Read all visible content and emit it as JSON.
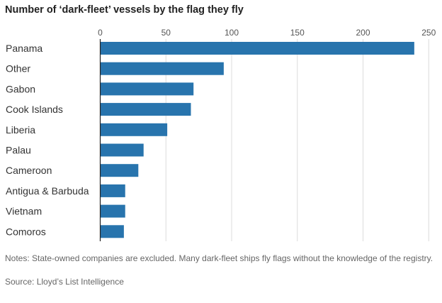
{
  "title": "Number of ‘dark-fleet’ vessels by the flag they fly",
  "notes": "Notes: State-owned companies are excluded. Many dark-fleet ships fly flags without the knowledge of the registry.",
  "source": "Source: Lloyd’s List Intelligence",
  "chart_data": {
    "type": "bar",
    "orientation": "horizontal",
    "title": "Number of ‘dark-fleet’ vessels by the flag they fly",
    "xlabel": "",
    "ylabel": "",
    "categories": [
      "Panama",
      "Other",
      "Gabon",
      "Cook Islands",
      "Liberia",
      "Palau",
      "Cameroon",
      "Antigua & Barbuda",
      "Vietnam",
      "Comoros"
    ],
    "values": [
      239,
      94,
      71,
      69,
      51,
      33,
      29,
      19,
      19,
      18
    ],
    "xlim": [
      0,
      250
    ],
    "xticks": [
      0,
      50,
      100,
      150,
      200,
      250
    ],
    "tick_labels": [
      "0",
      "50",
      "100",
      "150",
      "200",
      "250"
    ],
    "grid": true,
    "bar_color": "#2874ad"
  }
}
